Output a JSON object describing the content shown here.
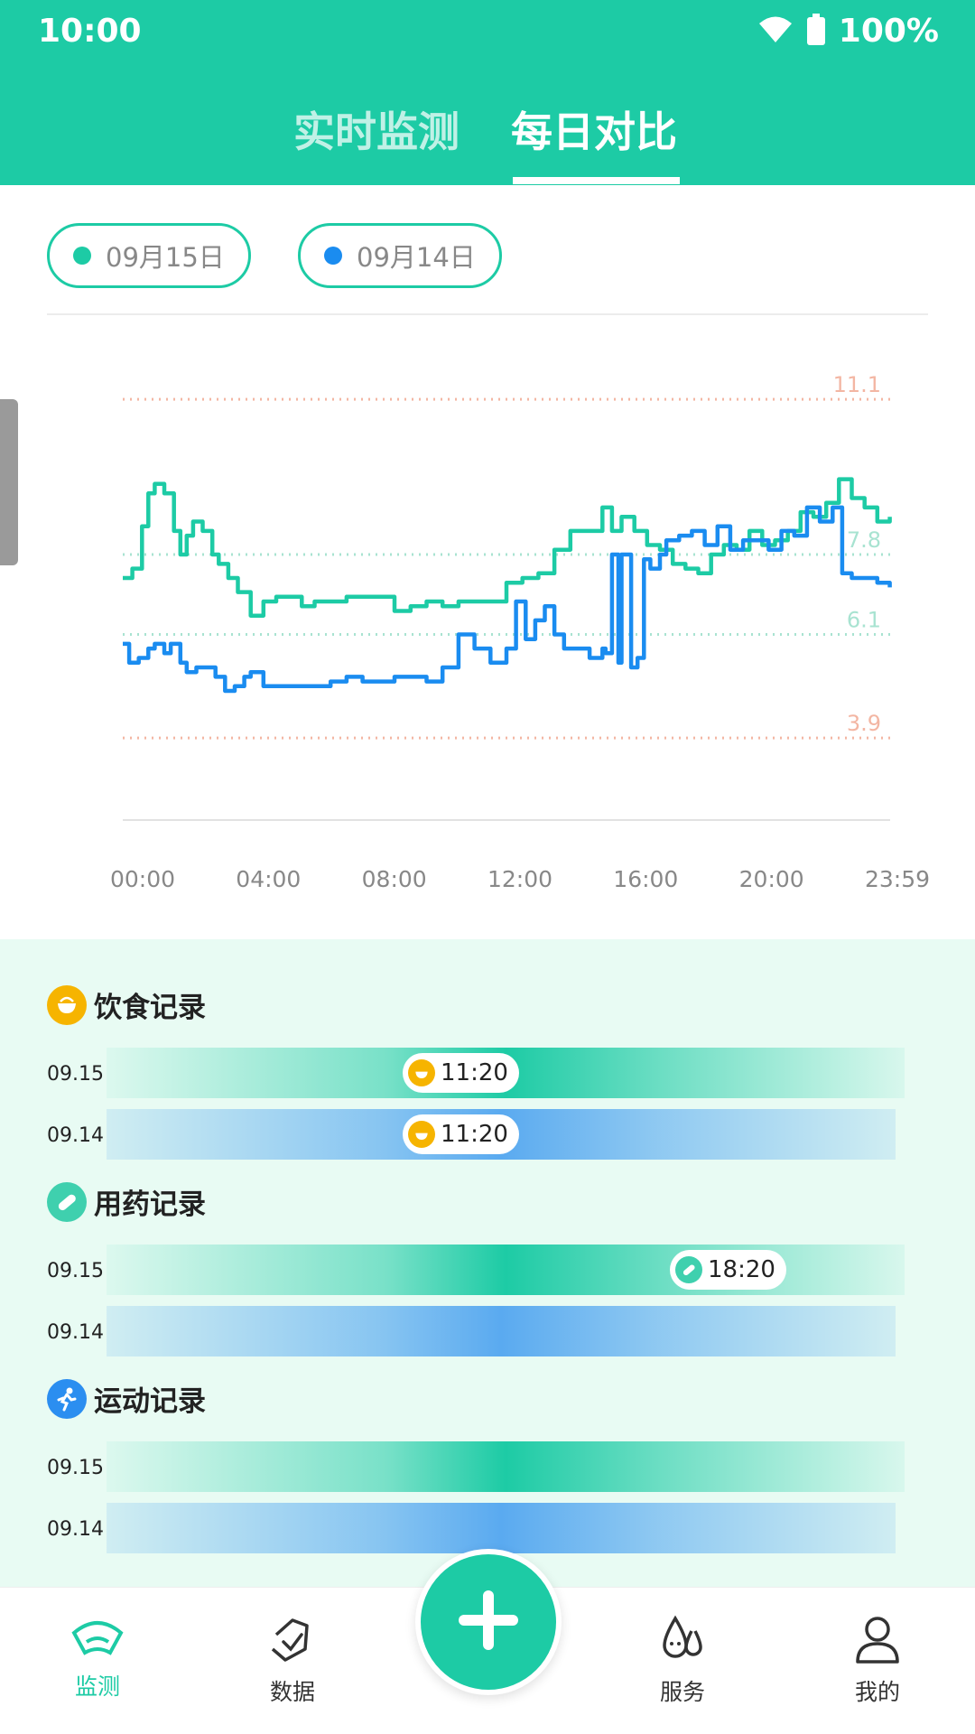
{
  "status": {
    "time": "10:00",
    "battery": "100%"
  },
  "tabs": [
    {
      "label": "实时监测"
    },
    {
      "label": "每日对比"
    }
  ],
  "dates": [
    {
      "label": "09月15日",
      "color": "#1dcba5"
    },
    {
      "label": "09月14日",
      "color": "#1a8cf0"
    }
  ],
  "chart_data": {
    "type": "line",
    "title": "",
    "xlabel": "",
    "ylabel": "",
    "xlim": [
      0,
      24
    ],
    "ylim": [
      2.5,
      12.1
    ],
    "x_ticks": [
      "00:00",
      "04:00",
      "08:00",
      "12:00",
      "16:00",
      "20:00",
      "23:59"
    ],
    "reference_lines": [
      {
        "value": 11.1,
        "label": "11.1",
        "color": "#f3b6a3"
      },
      {
        "value": 7.8,
        "label": "7.8",
        "color": "#a8e3d1"
      },
      {
        "value": 6.1,
        "label": "6.1",
        "color": "#a8e3d1"
      },
      {
        "value": 3.9,
        "label": "3.9",
        "color": "#f3b6a3"
      }
    ],
    "series": [
      {
        "color": "#1dcba5",
        "x": [
          0,
          0.3,
          0.6,
          0.8,
          1.0,
          1.3,
          1.6,
          1.8,
          2.0,
          2.2,
          2.5,
          2.8,
          3.0,
          3.3,
          3.6,
          4.0,
          4.4,
          4.8,
          5.2,
          5.6,
          6.0,
          6.5,
          7.0,
          7.5,
          8.0,
          8.5,
          9.0,
          9.5,
          10.0,
          10.5,
          11.0,
          11.5,
          12.0,
          12.5,
          13.0,
          13.5,
          14.0,
          14.5,
          15.0,
          15.3,
          15.6,
          16.0,
          16.4,
          16.8,
          17.2,
          17.6,
          18.0,
          18.4,
          18.8,
          19.2,
          19.6,
          20.0,
          20.4,
          20.8,
          21.2,
          21.6,
          22.0,
          22.4,
          22.8,
          23.2,
          23.6,
          23.99
        ],
        "y": [
          7.3,
          7.5,
          8.4,
          9.1,
          9.3,
          9.1,
          8.3,
          7.8,
          8.2,
          8.5,
          8.3,
          7.8,
          7.6,
          7.3,
          7.0,
          6.5,
          6.8,
          6.9,
          6.9,
          6.7,
          6.8,
          6.8,
          6.9,
          6.9,
          6.9,
          6.6,
          6.7,
          6.8,
          6.7,
          6.8,
          6.8,
          6.8,
          7.2,
          7.3,
          7.4,
          7.9,
          8.3,
          8.3,
          8.8,
          8.3,
          8.6,
          8.3,
          8.0,
          7.9,
          7.6,
          7.5,
          7.4,
          7.8,
          8.0,
          7.9,
          8.3,
          8.0,
          8.1,
          8.3,
          8.7,
          8.6,
          8.9,
          9.4,
          9.0,
          8.8,
          8.5,
          8.6
        ]
      },
      {
        "color": "#1a8cf0",
        "x": [
          0,
          0.2,
          0.5,
          0.8,
          1.0,
          1.3,
          1.5,
          1.8,
          2.0,
          2.3,
          2.6,
          2.9,
          3.2,
          3.5,
          3.8,
          4.0,
          4.4,
          4.8,
          5.2,
          5.6,
          6.0,
          6.5,
          7.0,
          7.5,
          8.0,
          8.5,
          9.0,
          9.5,
          10.0,
          10.5,
          11.0,
          11.5,
          12.0,
          12.3,
          12.6,
          12.9,
          13.2,
          13.5,
          13.8,
          14.2,
          14.6,
          15.0,
          15.1,
          15.3,
          15.5,
          15.6,
          15.9,
          16.1,
          16.3,
          16.5,
          16.8,
          17.0,
          17.4,
          17.8,
          18.2,
          18.6,
          19.0,
          19.4,
          19.8,
          20.2,
          20.6,
          21.0,
          21.4,
          21.8,
          22.2,
          22.5,
          22.8,
          23.2,
          23.6,
          23.99
        ],
        "y": [
          5.9,
          5.5,
          5.6,
          5.8,
          5.9,
          5.7,
          5.9,
          5.5,
          5.3,
          5.4,
          5.4,
          5.2,
          4.9,
          5.0,
          5.2,
          5.3,
          5.0,
          5.0,
          5.0,
          5.0,
          5.0,
          5.1,
          5.2,
          5.1,
          5.1,
          5.2,
          5.2,
          5.1,
          5.4,
          6.1,
          5.8,
          5.5,
          5.8,
          6.8,
          6.0,
          6.4,
          6.7,
          6.1,
          5.8,
          5.8,
          5.6,
          5.8,
          5.7,
          7.8,
          5.5,
          7.8,
          5.4,
          5.6,
          7.7,
          7.5,
          7.8,
          8.1,
          8.2,
          8.3,
          8.0,
          8.4,
          7.9,
          8.1,
          8.1,
          7.9,
          8.3,
          8.2,
          8.8,
          8.5,
          8.8,
          7.4,
          7.3,
          7.3,
          7.2,
          7.1
        ]
      }
    ]
  },
  "records": [
    {
      "title": "饮食记录",
      "icon": "rice-bowl-icon",
      "rows": [
        {
          "date": "09.15",
          "style": "green",
          "marker": {
            "time": "11:20",
            "icon": "rice-bowl-icon"
          }
        },
        {
          "date": "09.14",
          "style": "blue",
          "marker": {
            "time": "11:20",
            "icon": "rice-bowl-icon"
          }
        }
      ]
    },
    {
      "title": "用药记录",
      "icon": "pill-icon",
      "rows": [
        {
          "date": "09.15",
          "style": "green",
          "marker": {
            "time": "18:20",
            "icon": "pill-icon"
          }
        },
        {
          "date": "09.14",
          "style": "blue"
        }
      ]
    },
    {
      "title": "运动记录",
      "icon": "running-icon",
      "rows": [
        {
          "date": "09.15",
          "style": "green"
        },
        {
          "date": "09.14",
          "style": "blue"
        }
      ]
    }
  ],
  "nav": [
    {
      "label": "监测",
      "icon": "monitor-icon",
      "active": true
    },
    {
      "label": "数据",
      "icon": "data-icon",
      "active": false
    },
    {
      "label": "服务",
      "icon": "drops-icon",
      "active": false
    },
    {
      "label": "我的",
      "icon": "profile-icon",
      "active": false
    }
  ],
  "fab": {
    "icon": "plus-icon"
  }
}
